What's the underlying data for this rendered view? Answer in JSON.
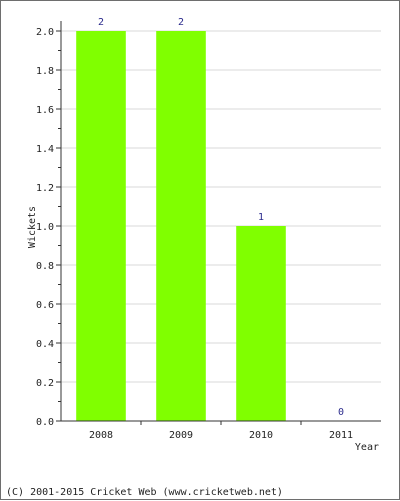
{
  "chart_data": {
    "type": "bar",
    "categories": [
      "2008",
      "2009",
      "2010",
      "2011"
    ],
    "values": [
      2,
      2,
      1,
      0
    ],
    "data_labels": [
      "2",
      "2",
      "1",
      "0"
    ],
    "ylim": [
      0,
      2.0
    ],
    "yticks": [
      "0.0",
      "0.2",
      "0.4",
      "0.6",
      "0.8",
      "1.0",
      "1.2",
      "1.4",
      "1.6",
      "1.8",
      "2.0"
    ],
    "xlabel": "Year",
    "ylabel": "Wickets",
    "grid": true,
    "bar_color": "#80ff00"
  },
  "footer": "(C) 2001-2015 Cricket Web (www.cricketweb.net)"
}
